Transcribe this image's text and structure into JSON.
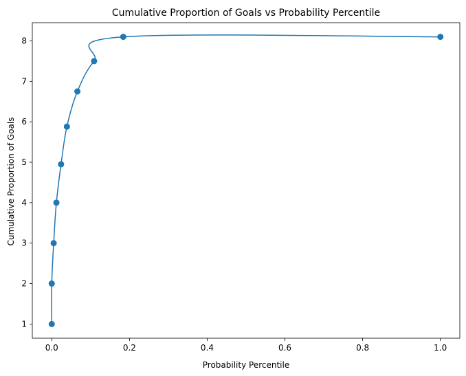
{
  "chart_data": {
    "type": "line",
    "title": "Cumulative Proportion of Goals vs Probability Percentile",
    "xlabel": "Probability Percentile",
    "ylabel": "Cumulative Proportion of Goals",
    "xlim": [
      -0.05,
      1.05
    ],
    "ylim": [
      0.65,
      8.45
    ],
    "xticks": [
      0.0,
      0.2,
      0.4,
      0.6,
      0.8,
      1.0
    ],
    "xtick_labels": [
      "0.0",
      "0.2",
      "0.4",
      "0.6",
      "0.8",
      "1.0"
    ],
    "yticks": [
      1,
      2,
      3,
      4,
      5,
      6,
      7,
      8
    ],
    "ytick_labels": [
      "1",
      "2",
      "3",
      "4",
      "5",
      "6",
      "7",
      "8"
    ],
    "grid": false,
    "series": [
      {
        "color": "#1f77b4",
        "marker": "circle",
        "x": [
          0.0,
          0.0,
          0.005,
          0.012,
          0.024,
          0.039,
          0.066,
          0.109,
          0.184,
          1.0
        ],
        "y": [
          1.0,
          2.0,
          3.0,
          4.0,
          4.95,
          5.88,
          6.75,
          7.5,
          8.1,
          8.1
        ]
      }
    ]
  }
}
